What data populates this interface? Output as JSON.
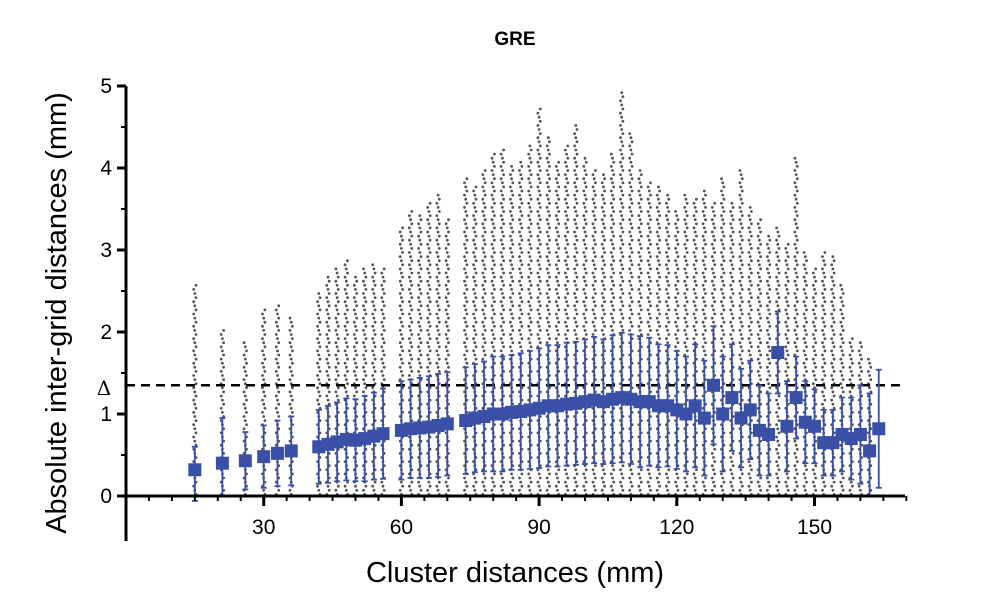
{
  "chart_data": {
    "type": "scatter",
    "title": "GRE",
    "xlabel": "Cluster distances (mm)",
    "ylabel": "Absolute inter-grid distances (mm)",
    "xlim": [
      0,
      170
    ],
    "ylim": [
      0,
      5
    ],
    "x_ticks": [
      30,
      60,
      90,
      120,
      150
    ],
    "y_ticks": [
      0,
      1,
      2,
      3,
      4,
      5
    ],
    "reference_line": {
      "y": 1.35,
      "label": "Δ",
      "style": "dashed"
    },
    "colors": {
      "raw_points": "#555555",
      "mean_markers": "#3a50a6",
      "reference_line": "#000000"
    },
    "raw_points_max": [
      [
        15,
        2.6
      ],
      [
        21,
        2.05
      ],
      [
        26,
        1.88
      ],
      [
        30,
        2.3
      ],
      [
        33,
        2.35
      ],
      [
        36,
        2.2
      ],
      [
        42,
        2.5
      ],
      [
        44,
        2.7
      ],
      [
        46,
        2.8
      ],
      [
        48,
        2.9
      ],
      [
        50,
        2.7
      ],
      [
        52,
        2.8
      ],
      [
        54,
        2.85
      ],
      [
        56,
        2.8
      ],
      [
        60,
        3.3
      ],
      [
        62,
        3.5
      ],
      [
        64,
        3.45
      ],
      [
        66,
        3.6
      ],
      [
        68,
        3.7
      ],
      [
        70,
        3.4
      ],
      [
        74,
        3.9
      ],
      [
        76,
        3.8
      ],
      [
        78,
        4.0
      ],
      [
        80,
        4.2
      ],
      [
        82,
        4.25
      ],
      [
        84,
        4.05
      ],
      [
        86,
        4.1
      ],
      [
        88,
        4.3
      ],
      [
        90,
        4.75
      ],
      [
        92,
        4.4
      ],
      [
        94,
        4.1
      ],
      [
        96,
        4.3
      ],
      [
        98,
        4.55
      ],
      [
        100,
        4.15
      ],
      [
        102,
        4.0
      ],
      [
        104,
        3.95
      ],
      [
        106,
        4.2
      ],
      [
        108,
        4.95
      ],
      [
        110,
        4.45
      ],
      [
        112,
        4.0
      ],
      [
        114,
        3.85
      ],
      [
        116,
        3.8
      ],
      [
        118,
        3.7
      ],
      [
        120,
        3.5
      ],
      [
        122,
        3.7
      ],
      [
        124,
        3.65
      ],
      [
        126,
        3.75
      ],
      [
        128,
        3.6
      ],
      [
        130,
        3.9
      ],
      [
        132,
        3.6
      ],
      [
        134,
        4.0
      ],
      [
        136,
        3.55
      ],
      [
        138,
        3.4
      ],
      [
        140,
        3.2
      ],
      [
        142,
        3.3
      ],
      [
        144,
        3.1
      ],
      [
        146,
        4.15
      ],
      [
        148,
        3.0
      ],
      [
        150,
        2.8
      ],
      [
        152,
        3.0
      ],
      [
        154,
        2.95
      ],
      [
        156,
        2.6
      ],
      [
        158,
        1.95
      ],
      [
        160,
        1.9
      ],
      [
        162,
        1.7
      ]
    ],
    "series": [
      {
        "marker": "square",
        "x": [
          15,
          21,
          26,
          30,
          33,
          36,
          42,
          44,
          46,
          48,
          50,
          52,
          54,
          56,
          60,
          62,
          64,
          66,
          68,
          70,
          74,
          76,
          78,
          80,
          82,
          84,
          86,
          88,
          90,
          92,
          94,
          96,
          98,
          100,
          102,
          104,
          106,
          108,
          110,
          112,
          114,
          116,
          118,
          120,
          122,
          124,
          126,
          128,
          130,
          132,
          134,
          136,
          138,
          140,
          142,
          144,
          146,
          148,
          150,
          152,
          154,
          156,
          158,
          160,
          162,
          164
        ],
        "y": [
          0.32,
          0.4,
          0.43,
          0.48,
          0.52,
          0.55,
          0.6,
          0.63,
          0.66,
          0.69,
          0.68,
          0.7,
          0.73,
          0.76,
          0.8,
          0.82,
          0.83,
          0.84,
          0.86,
          0.88,
          0.92,
          0.95,
          0.97,
          1.0,
          1.0,
          1.02,
          1.03,
          1.05,
          1.07,
          1.1,
          1.1,
          1.12,
          1.13,
          1.15,
          1.17,
          1.15,
          1.18,
          1.2,
          1.18,
          1.15,
          1.15,
          1.1,
          1.1,
          1.05,
          1.0,
          1.1,
          0.95,
          1.35,
          1.0,
          1.2,
          0.95,
          1.05,
          0.8,
          0.75,
          1.75,
          0.85,
          1.2,
          0.9,
          0.85,
          0.65,
          0.65,
          0.75,
          0.7,
          0.75,
          0.55,
          0.82
        ],
        "error": [
          0.28,
          0.55,
          0.35,
          0.38,
          0.4,
          0.42,
          0.45,
          0.47,
          0.48,
          0.5,
          0.5,
          0.52,
          0.53,
          0.55,
          0.6,
          0.6,
          0.61,
          0.62,
          0.63,
          0.63,
          0.65,
          0.66,
          0.67,
          0.7,
          0.7,
          0.7,
          0.71,
          0.72,
          0.73,
          0.74,
          0.74,
          0.75,
          0.75,
          0.76,
          0.77,
          0.76,
          0.78,
          0.79,
          0.79,
          0.8,
          0.78,
          0.75,
          0.74,
          0.72,
          0.7,
          0.75,
          0.7,
          0.72,
          0.7,
          0.65,
          0.6,
          0.6,
          0.55,
          0.5,
          0.5,
          0.55,
          0.5,
          0.5,
          0.45,
          0.4,
          0.4,
          0.45,
          0.5,
          0.6,
          0.7,
          0.72
        ]
      }
    ]
  }
}
